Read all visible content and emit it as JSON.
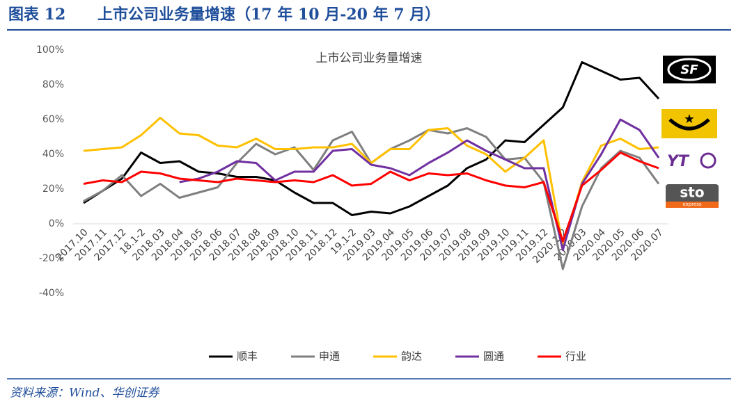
{
  "header": {
    "label": "图表 12",
    "title": "上市公司业务量增速（17 年 10 月-20 年 7 月）"
  },
  "footer": {
    "source": "资料来源：Wind、华创证券"
  },
  "logos": [
    "SF",
    "YT",
    "sto",
    "express"
  ],
  "chart_data": {
    "type": "line",
    "title": "上市公司业务量增速",
    "categories": [
      "2017.10",
      "2017.11",
      "2017.12",
      "18.1-2",
      "2018.03",
      "2018.04",
      "2018.05",
      "2018.06",
      "2018.07",
      "2018.08",
      "2018.09",
      "2018.10",
      "2018.11",
      "2018.12",
      "19.1-2",
      "2019.03",
      "2019.04",
      "2019.05",
      "2019.06",
      "2019.07",
      "2019.08",
      "2019.09",
      "2019.10",
      "2019.11",
      "2019.12",
      "2020.1-2",
      "2020.03",
      "2020.04",
      "2020.05",
      "2020.06",
      "2020.07"
    ],
    "series": [
      {
        "name": "顺丰",
        "color": "#000000",
        "values": [
          12,
          19,
          26,
          41,
          35,
          36,
          30,
          29,
          27,
          27,
          25,
          18,
          12,
          12,
          5,
          7,
          6,
          10,
          16,
          22,
          32,
          37,
          48,
          47,
          57,
          67,
          93,
          88,
          83,
          84,
          72
        ]
      },
      {
        "name": "申通",
        "color": "#7f7f7f",
        "values": [
          13,
          19,
          28,
          16,
          23,
          15,
          18,
          21,
          35,
          46,
          40,
          44,
          31,
          48,
          53,
          35,
          43,
          48,
          54,
          52,
          55,
          50,
          37,
          38,
          24,
          -26,
          10,
          32,
          42,
          38,
          23
        ]
      },
      {
        "name": "韵达",
        "color": "#ffc000",
        "values": [
          42,
          43,
          44,
          51,
          61,
          52,
          51,
          45,
          44,
          49,
          43,
          43,
          44,
          44,
          46,
          35,
          43,
          43,
          54,
          55,
          45,
          40,
          30,
          38,
          48,
          -13,
          24,
          45,
          49,
          43,
          44
        ]
      },
      {
        "name": "圆通",
        "color": "#7030a0",
        "values": [
          null,
          null,
          null,
          null,
          null,
          24,
          26,
          30,
          36,
          35,
          25,
          30,
          30,
          42,
          43,
          34,
          32,
          28,
          35,
          41,
          48,
          42,
          37,
          32,
          32,
          -15,
          23,
          40,
          60,
          54,
          38
        ]
      },
      {
        "name": "行业",
        "color": "#ff0000",
        "values": [
          23,
          25,
          24,
          30,
          29,
          26,
          25,
          24,
          26,
          25,
          24,
          25,
          24,
          28,
          22,
          23,
          30,
          25,
          29,
          28,
          29,
          25,
          22,
          21,
          24,
          -10,
          22,
          31,
          41,
          36,
          32
        ]
      }
    ],
    "ylim": [
      -40,
      100
    ],
    "yticks": [
      {
        "value": -40,
        "label": "-40%"
      },
      {
        "value": -20,
        "label": "-20%"
      },
      {
        "value": 0,
        "label": "0%"
      },
      {
        "value": 20,
        "label": "20%"
      },
      {
        "value": 40,
        "label": "40%"
      },
      {
        "value": 60,
        "label": "60%"
      },
      {
        "value": 80,
        "label": "80%"
      },
      {
        "value": 100,
        "label": "100%"
      }
    ],
    "legend": "bottom"
  }
}
